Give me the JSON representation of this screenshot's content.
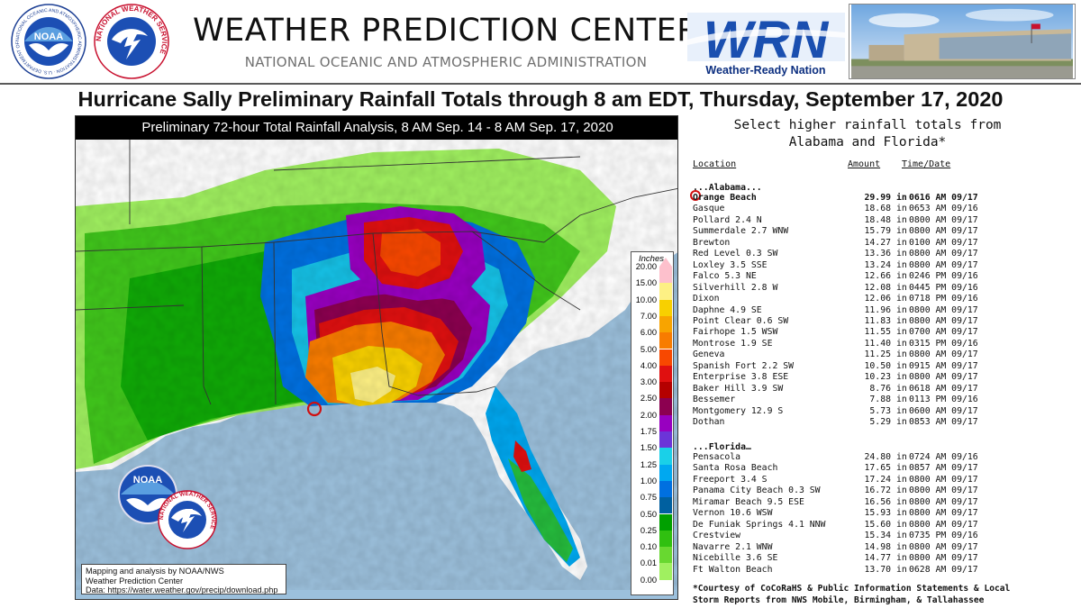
{
  "header": {
    "noaa_logo_text": "NATIONAL OCEANIC AND ATMOSPHERIC ADMINISTRATION · U.S. DEPARTMENT OF COMMERCE",
    "nws_logo_text": "NATIONAL WEATHER SERVICE",
    "center_title": "WEATHER PREDICTION CENTER",
    "center_subtitle": "NATIONAL OCEANIC AND ATMOSPHERIC ADMINISTRATION",
    "wrn_logo_text": "WRN",
    "wrn_logo_caption": "Weather-Ready Nation"
  },
  "main_title": "Hurricane Sally Preliminary Rainfall Totals through 8 am EDT, Thursday, September 17, 2020",
  "map": {
    "title": "Preliminary 72-hour Total Rainfall Analysis, 8 AM Sep. 14 - 8 AM Sep. 17, 2020",
    "credit_lines": [
      "Mapping and analysis by NOAA/NWS",
      "Weather Prediction Center",
      "Data: https://water.weather.gov/precip/download.php"
    ],
    "inset_noaa_text": "NOAA",
    "inset_nws_text": "NATIONAL WEATHER SERVICE",
    "legend": {
      "title": "Inches",
      "levels": [
        {
          "label": "20.00",
          "color": "#fdc0cc"
        },
        {
          "label": "15.00",
          "color": "#fdf084"
        },
        {
          "label": "10.00",
          "color": "#f8d000"
        },
        {
          "label": "7.00",
          "color": "#f8a400"
        },
        {
          "label": "6.00",
          "color": "#f87c00"
        },
        {
          "label": "5.00",
          "color": "#f84800"
        },
        {
          "label": "4.00",
          "color": "#e01010"
        },
        {
          "label": "3.00",
          "color": "#b40000"
        },
        {
          "label": "2.50",
          "color": "#8c0050"
        },
        {
          "label": "2.00",
          "color": "#9800c0"
        },
        {
          "label": "1.75",
          "color": "#6c34d8"
        },
        {
          "label": "1.50",
          "color": "#1ad0e8"
        },
        {
          "label": "1.25",
          "color": "#00a8f0"
        },
        {
          "label": "1.00",
          "color": "#0070e0"
        },
        {
          "label": "0.75",
          "color": "#0060a0"
        },
        {
          "label": "0.50",
          "color": "#00a000"
        },
        {
          "label": "0.25",
          "color": "#30c010"
        },
        {
          "label": "0.10",
          "color": "#68d830"
        },
        {
          "label": "0.01",
          "color": "#a0f060"
        },
        {
          "label": "0.00",
          "color": "#ffffff"
        }
      ]
    }
  },
  "table": {
    "heading_line1": "Select higher rainfall totals from",
    "heading_line2": "Alabama and Florida*",
    "col_location": "Location",
    "col_amount": "Amount",
    "col_time": "Time/Date",
    "alabama_title": "...Alabama...",
    "alabama": [
      {
        "loc": "Orange Beach",
        "amt": "29.99",
        "unit": "in",
        "time": "0616 AM 09/17"
      },
      {
        "loc": "Gasque",
        "amt": "18.68",
        "unit": "in",
        "time": "0653 AM 09/16"
      },
      {
        "loc": "Pollard 2.4 N",
        "amt": "18.48",
        "unit": "in",
        "time": "0800 AM 09/17"
      },
      {
        "loc": "Summerdale 2.7 WNW",
        "amt": "15.79",
        "unit": "in",
        "time": "0800 AM 09/17"
      },
      {
        "loc": "Brewton",
        "amt": "14.27",
        "unit": "in",
        "time": "0100 AM 09/17"
      },
      {
        "loc": "Red Level 0.3 SW",
        "amt": "13.36",
        "unit": "in",
        "time": "0800 AM 09/17"
      },
      {
        "loc": "Loxley 3.5 SSE",
        "amt": "13.24",
        "unit": "in",
        "time": "0800 AM 09/17"
      },
      {
        "loc": "Falco 5.3 NE",
        "amt": "12.66",
        "unit": "in",
        "time": "0246 PM 09/16"
      },
      {
        "loc": "Silverhill 2.8 W",
        "amt": "12.08",
        "unit": "in",
        "time": "0445 PM 09/16"
      },
      {
        "loc": "Dixon",
        "amt": "12.06",
        "unit": "in",
        "time": "0718 PM 09/16"
      },
      {
        "loc": "Daphne 4.9 SE",
        "amt": "11.96",
        "unit": "in",
        "time": "0800 AM 09/17"
      },
      {
        "loc": "Point Clear 0.6 SW",
        "amt": "11.83",
        "unit": "in",
        "time": "0800 AM 09/17"
      },
      {
        "loc": "Fairhope 1.5 WSW",
        "amt": "11.55",
        "unit": "in",
        "time": "0700 AM 09/17"
      },
      {
        "loc": "Montrose 1.9 SE",
        "amt": "11.40",
        "unit": "in",
        "time": "0315 PM 09/16"
      },
      {
        "loc": "Geneva",
        "amt": "11.25",
        "unit": "in",
        "time": "0800 AM 09/17"
      },
      {
        "loc": "Spanish Fort 2.2 SW",
        "amt": "10.50",
        "unit": "in",
        "time": "0915 AM 09/17"
      },
      {
        "loc": "Enterprise 3.8 ESE",
        "amt": "10.23",
        "unit": "in",
        "time": "0800 AM 09/17"
      },
      {
        "loc": "Baker Hill 3.9 SW",
        "amt": "8.76",
        "unit": "in",
        "time": "0618 AM 09/17"
      },
      {
        "loc": "Bessemer",
        "amt": "7.88",
        "unit": "in",
        "time": "0113 PM 09/16"
      },
      {
        "loc": "Montgomery 12.9 S",
        "amt": "5.73",
        "unit": "in",
        "time": "0600 AM 09/17"
      },
      {
        "loc": "Dothan",
        "amt": "5.29",
        "unit": "in",
        "time": "0853 AM 09/17"
      }
    ],
    "florida_title": "...Florida…",
    "florida": [
      {
        "loc": "Pensacola",
        "amt": "24.80",
        "unit": "in",
        "time": "0724 AM 09/16"
      },
      {
        "loc": "Santa Rosa Beach",
        "amt": "17.65",
        "unit": "in",
        "time": "0857 AM 09/17"
      },
      {
        "loc": "Freeport 3.4 S",
        "amt": "17.24",
        "unit": "in",
        "time": "0800 AM 09/17"
      },
      {
        "loc": "Panama City Beach 0.3 SW",
        "amt": "16.72",
        "unit": "in",
        "time": "0800 AM 09/17"
      },
      {
        "loc": "Miramar Beach 9.5 ESE",
        "amt": "16.56",
        "unit": "in",
        "time": "0800 AM 09/17"
      },
      {
        "loc": "Vernon 10.6 WSW",
        "amt": "15.93",
        "unit": "in",
        "time": "0800 AM 09/17"
      },
      {
        "loc": "De Funiak Springs 4.1 NNW",
        "amt": "15.60",
        "unit": "in",
        "time": "0800 AM 09/17"
      },
      {
        "loc": "Crestview",
        "amt": "15.34",
        "unit": "in",
        "time": "0735 PM 09/16"
      },
      {
        "loc": "Navarre 2.1 WNW",
        "amt": "14.98",
        "unit": "in",
        "time": "0800 AM 09/17"
      },
      {
        "loc": "Nicebille 3.6 SE",
        "amt": "14.77",
        "unit": "in",
        "time": "0800 AM 09/17"
      },
      {
        "loc": "Ft Walton Beach",
        "amt": "13.70",
        "unit": "in",
        "time": "0628 AM 09/17"
      }
    ],
    "footnote_line1": "*Courtesy of CoCoRaHS & Public Information Statements & Local",
    "footnote_line2": "Storm Reports from NWS Mobile, Birmingham, & Tallahassee"
  }
}
